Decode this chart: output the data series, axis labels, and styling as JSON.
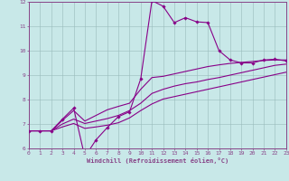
{
  "xlabel": "Windchill (Refroidissement éolien,°C)",
  "xlim": [
    0,
    23
  ],
  "ylim": [
    6,
    12
  ],
  "xticks": [
    0,
    1,
    2,
    3,
    4,
    5,
    6,
    7,
    8,
    9,
    10,
    11,
    12,
    13,
    14,
    15,
    16,
    17,
    18,
    19,
    20,
    21,
    22,
    23
  ],
  "yticks": [
    6,
    7,
    8,
    9,
    10,
    11,
    12
  ],
  "bg_color": "#c8e8e8",
  "line_color": "#880088",
  "grid_color": "#99bbbb",
  "curve_main_x": [
    0,
    1,
    2,
    3,
    4,
    5,
    6,
    7,
    8,
    9,
    10,
    11,
    12,
    13,
    14,
    15,
    16,
    17,
    18,
    19,
    20,
    21,
    22,
    23
  ],
  "curve_main_y": [
    6.72,
    6.72,
    6.72,
    7.2,
    7.65,
    5.65,
    6.35,
    6.85,
    7.3,
    7.5,
    8.85,
    12.05,
    11.82,
    11.15,
    11.35,
    11.18,
    11.15,
    10.0,
    9.62,
    9.5,
    9.5,
    9.62,
    9.65,
    9.58
  ],
  "curve2_x": [
    0,
    1,
    2,
    3,
    4,
    5,
    6,
    7,
    8,
    9,
    10,
    11,
    12,
    13,
    14,
    15,
    16,
    17,
    18,
    19,
    20,
    21,
    22,
    23
  ],
  "curve2_y": [
    6.72,
    6.72,
    6.72,
    7.15,
    7.55,
    7.12,
    7.35,
    7.58,
    7.72,
    7.85,
    8.42,
    8.9,
    8.95,
    9.05,
    9.15,
    9.25,
    9.35,
    9.42,
    9.48,
    9.52,
    9.56,
    9.6,
    9.62,
    9.62
  ],
  "curve3_x": [
    0,
    1,
    2,
    3,
    4,
    5,
    6,
    7,
    8,
    9,
    10,
    11,
    12,
    13,
    14,
    15,
    16,
    17,
    18,
    19,
    20,
    21,
    22,
    23
  ],
  "curve3_y": [
    6.72,
    6.72,
    6.72,
    7.0,
    7.2,
    7.02,
    7.12,
    7.22,
    7.35,
    7.55,
    7.85,
    8.25,
    8.42,
    8.55,
    8.65,
    8.72,
    8.82,
    8.9,
    9.0,
    9.1,
    9.2,
    9.3,
    9.4,
    9.45
  ],
  "curve4_x": [
    0,
    1,
    2,
    3,
    4,
    5,
    6,
    7,
    8,
    9,
    10,
    11,
    12,
    13,
    14,
    15,
    16,
    17,
    18,
    19,
    20,
    21,
    22,
    23
  ],
  "curve4_y": [
    6.72,
    6.72,
    6.72,
    6.88,
    7.02,
    6.82,
    6.88,
    6.95,
    7.05,
    7.25,
    7.55,
    7.82,
    8.02,
    8.12,
    8.22,
    8.32,
    8.42,
    8.52,
    8.62,
    8.72,
    8.82,
    8.92,
    9.02,
    9.12
  ],
  "spine_color": "#884488",
  "tick_label_color": "#884488",
  "xlabel_color": "#884488",
  "lw_main": 0.8,
  "lw_other": 0.8,
  "marker_size": 1.8
}
